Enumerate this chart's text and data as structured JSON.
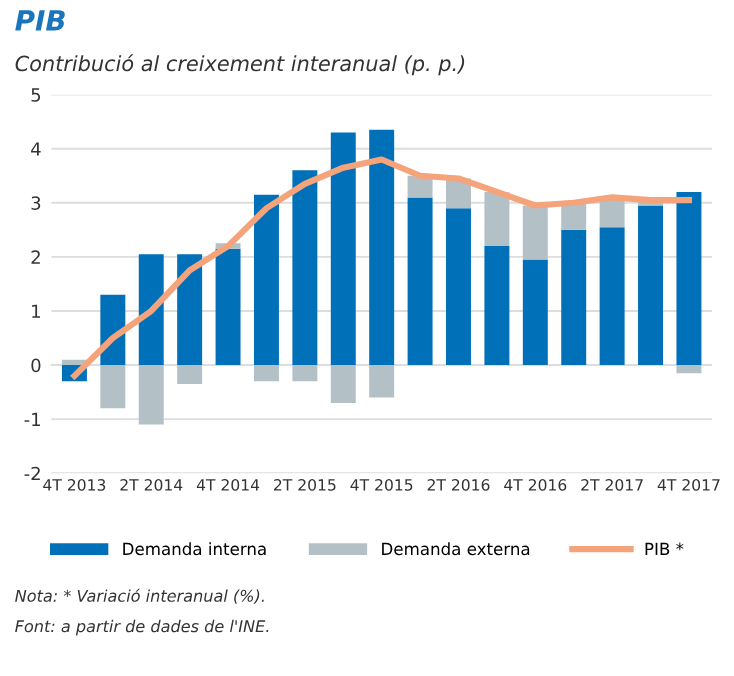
{
  "chart_data": {
    "type": "bar",
    "title": "PIB",
    "subtitle": "Contribució al creixement interanual (p. p.)",
    "categories": [
      "4T 2013",
      null,
      "2T 2014",
      null,
      "4T 2014",
      null,
      "2T 2015",
      null,
      "4T 2015",
      null,
      "2T 2016",
      null,
      "4T 2016",
      null,
      "2T 2017",
      null,
      "4T 2017"
    ],
    "stacked": true,
    "series": [
      {
        "name": "Demanda interna",
        "color": "#0070b8",
        "values": [
          -0.3,
          1.3,
          2.05,
          2.05,
          2.15,
          3.15,
          3.6,
          4.3,
          4.35,
          3.1,
          2.9,
          2.2,
          1.95,
          2.5,
          2.55,
          2.95,
          3.2
        ]
      },
      {
        "name": "Demanda externa",
        "color": "#b3c1c7",
        "values": [
          0.1,
          -0.8,
          -1.1,
          -0.35,
          0.1,
          -0.3,
          -0.3,
          -0.7,
          -0.6,
          0.4,
          0.55,
          1.0,
          1.0,
          0.5,
          0.5,
          0.1,
          -0.15
        ]
      },
      {
        "name": "PIB *",
        "type": "line",
        "color": "#f4a37a",
        "values": [
          -0.2,
          0.5,
          1.0,
          1.75,
          2.2,
          2.9,
          3.35,
          3.65,
          3.8,
          3.5,
          3.45,
          3.2,
          2.95,
          3.0,
          3.1,
          3.05,
          3.05
        ]
      }
    ],
    "ylim": [
      -2,
      5
    ],
    "yticks": [
      -2,
      -1,
      0,
      1,
      2,
      3,
      4,
      5
    ],
    "grid": "y",
    "legend": "bottom",
    "annotations": [
      "Nota: * Variació interanual (%).",
      "Font: a partir de dades de l'INE."
    ]
  }
}
